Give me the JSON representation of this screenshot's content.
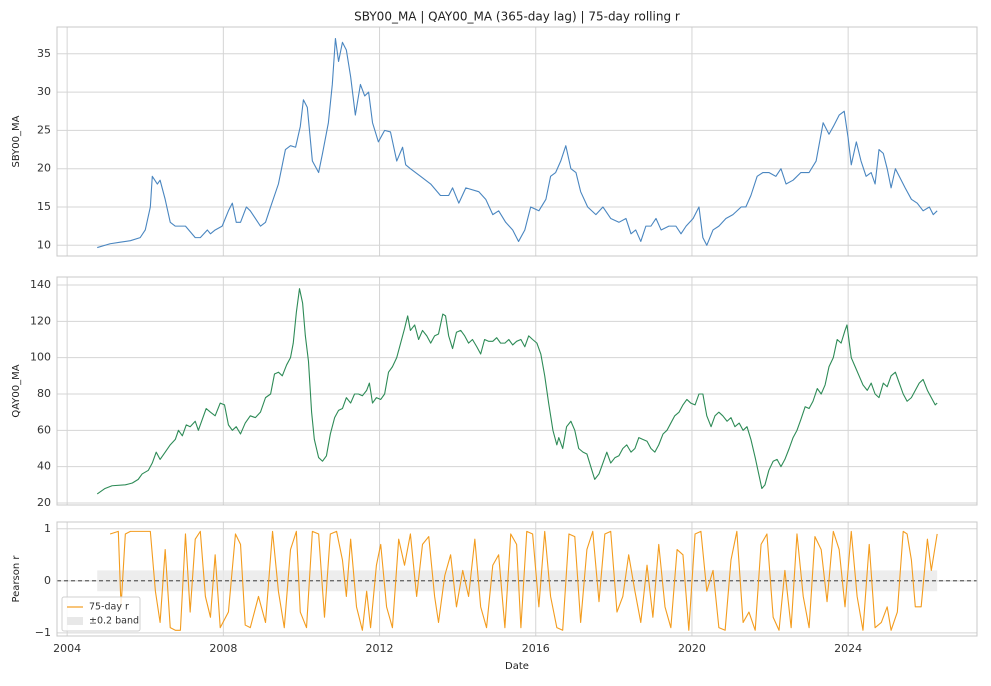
{
  "chart_data": [
    {
      "type": "line",
      "title": "SBY00_MA  |  QAY00_MA (365-day lag)  |  75-day rolling r",
      "ylabel": "SBY00_MA",
      "x": [
        2004.77,
        2005.1,
        2005.36,
        2005.62,
        2005.87,
        2006.0,
        2006.13,
        2006.18,
        2006.31,
        2006.38,
        2006.51,
        2006.64,
        2006.77,
        2007.03,
        2007.28,
        2007.41,
        2007.59,
        2007.67,
        2007.79,
        2007.97,
        2008.13,
        2008.23,
        2008.33,
        2008.44,
        2008.59,
        2008.69,
        2008.82,
        2008.95,
        2009.08,
        2009.21,
        2009.41,
        2009.59,
        2009.72,
        2009.85,
        2009.97,
        2010.05,
        2010.15,
        2010.28,
        2010.44,
        2010.54,
        2010.69,
        2010.79,
        2010.87,
        2010.95,
        2011.05,
        2011.15,
        2011.26,
        2011.38,
        2011.51,
        2011.62,
        2011.72,
        2011.82,
        2011.97,
        2012.13,
        2012.28,
        2012.44,
        2012.59,
        2012.67,
        2012.79,
        2013.05,
        2013.31,
        2013.56,
        2013.77,
        2013.87,
        2014.03,
        2014.21,
        2014.54,
        2014.72,
        2014.9,
        2015.05,
        2015.23,
        2015.41,
        2015.56,
        2015.72,
        2015.87,
        2016.08,
        2016.26,
        2016.38,
        2016.51,
        2016.64,
        2016.77,
        2016.9,
        2017.03,
        2017.15,
        2017.33,
        2017.54,
        2017.72,
        2017.92,
        2018.13,
        2018.31,
        2018.44,
        2018.56,
        2018.69,
        2018.82,
        2018.95,
        2019.08,
        2019.21,
        2019.41,
        2019.59,
        2019.72,
        2019.85,
        2020.03,
        2020.18,
        2020.28,
        2020.38,
        2020.54,
        2020.69,
        2020.87,
        2021.05,
        2021.26,
        2021.38,
        2021.51,
        2021.67,
        2021.82,
        2021.97,
        2022.15,
        2022.28,
        2022.41,
        2022.59,
        2022.79,
        2023.0,
        2023.18,
        2023.36,
        2023.51,
        2023.62,
        2023.77,
        2023.9,
        2024.0,
        2024.08,
        2024.21,
        2024.33,
        2024.46,
        2024.59,
        2024.69,
        2024.79,
        2024.9,
        2025.0,
        2025.1,
        2025.21,
        2025.31,
        2025.46,
        2025.62,
        2025.77,
        2025.92,
        2026.08,
        2026.18,
        2026.28
      ],
      "series": [
        {
          "color": "#4a86c0",
          "values": [
            9.7,
            10.2,
            10.4,
            10.6,
            11,
            12,
            15,
            19,
            18,
            18.5,
            16,
            13,
            12.5,
            12.5,
            11,
            11,
            12,
            11.5,
            12,
            12.5,
            14.5,
            15.5,
            13,
            13,
            15,
            14.5,
            13.5,
            12.5,
            13,
            15,
            18,
            22.5,
            23,
            22.8,
            25.5,
            29,
            28,
            21,
            19.5,
            22,
            26,
            31,
            37,
            34,
            36.5,
            35.5,
            32,
            27,
            31,
            29.5,
            30,
            26,
            23.5,
            25,
            24.8,
            21,
            22.8,
            20.5,
            20,
            19,
            18,
            16.5,
            16.5,
            17.5,
            15.5,
            17.5,
            17,
            16,
            14,
            14.5,
            13,
            12,
            10.5,
            12,
            15,
            14.5,
            16,
            19,
            19.5,
            21,
            23,
            20,
            19.5,
            17,
            15,
            14,
            15,
            13.5,
            13,
            13.5,
            11.5,
            12,
            10.5,
            12.5,
            12.5,
            13.5,
            12,
            12.5,
            12.5,
            11.5,
            12.5,
            13.5,
            15,
            11,
            10,
            12,
            12.5,
            13.5,
            14,
            15,
            15,
            16.5,
            19,
            19.5,
            19.5,
            19,
            20,
            18,
            18.5,
            19.5,
            19.5,
            21,
            26,
            24.5,
            25.5,
            27,
            27.5,
            24,
            20.5,
            23.5,
            21,
            19,
            19.5,
            18,
            22.5,
            22,
            20,
            17.5,
            20,
            19,
            17.5,
            16,
            15.5,
            14.5,
            15,
            14,
            14.5
          ]
        }
      ],
      "xlim": [
        2003.74,
        2027.3
      ],
      "ylim": [
        8.6,
        38.5
      ],
      "yticks": [
        10,
        15,
        20,
        25,
        30,
        35
      ],
      "grid": true
    },
    {
      "type": "line",
      "ylabel": "QAY00_MA",
      "x": [
        2004.77,
        2004.97,
        2005.15,
        2005.49,
        2005.67,
        2005.82,
        2005.92,
        2006.08,
        2006.18,
        2006.28,
        2006.38,
        2006.51,
        2006.64,
        2006.77,
        2006.85,
        2006.95,
        2007.05,
        2007.15,
        2007.28,
        2007.36,
        2007.46,
        2007.56,
        2007.67,
        2007.79,
        2007.92,
        2008.03,
        2008.13,
        2008.23,
        2008.33,
        2008.44,
        2008.56,
        2008.69,
        2008.82,
        2008.95,
        2009.08,
        2009.21,
        2009.31,
        2009.41,
        2009.51,
        2009.62,
        2009.72,
        2009.79,
        2009.87,
        2009.95,
        2010.03,
        2010.1,
        2010.18,
        2010.26,
        2010.33,
        2010.44,
        2010.54,
        2010.64,
        2010.74,
        2010.85,
        2010.95,
        2011.05,
        2011.15,
        2011.26,
        2011.36,
        2011.46,
        2011.56,
        2011.67,
        2011.74,
        2011.82,
        2011.92,
        2012.03,
        2012.13,
        2012.23,
        2012.33,
        2012.44,
        2012.54,
        2012.64,
        2012.72,
        2012.79,
        2012.9,
        2013.0,
        2013.1,
        2013.21,
        2013.31,
        2013.41,
        2013.51,
        2013.62,
        2013.69,
        2013.77,
        2013.87,
        2013.97,
        2014.08,
        2014.18,
        2014.28,
        2014.38,
        2014.49,
        2014.59,
        2014.69,
        2014.79,
        2014.9,
        2015.0,
        2015.1,
        2015.21,
        2015.31,
        2015.41,
        2015.51,
        2015.62,
        2015.72,
        2015.82,
        2015.92,
        2016.03,
        2016.13,
        2016.23,
        2016.33,
        2016.44,
        2016.54,
        2016.59,
        2016.69,
        2016.79,
        2016.9,
        2017.0,
        2017.1,
        2017.21,
        2017.31,
        2017.41,
        2017.51,
        2017.62,
        2017.72,
        2017.82,
        2017.92,
        2018.03,
        2018.13,
        2018.23,
        2018.33,
        2018.44,
        2018.54,
        2018.64,
        2018.74,
        2018.85,
        2018.95,
        2019.05,
        2019.15,
        2019.26,
        2019.36,
        2019.46,
        2019.56,
        2019.67,
        2019.77,
        2019.87,
        2019.97,
        2020.08,
        2020.18,
        2020.28,
        2020.38,
        2020.49,
        2020.59,
        2020.69,
        2020.79,
        2020.9,
        2021.0,
        2021.1,
        2021.21,
        2021.31,
        2021.41,
        2021.51,
        2021.62,
        2021.72,
        2021.79,
        2021.87,
        2021.97,
        2022.08,
        2022.18,
        2022.28,
        2022.38,
        2022.49,
        2022.59,
        2022.69,
        2022.79,
        2022.9,
        2023.0,
        2023.1,
        2023.21,
        2023.31,
        2023.41,
        2023.51,
        2023.62,
        2023.72,
        2023.82,
        2023.92,
        2023.97,
        2024.08,
        2024.18,
        2024.28,
        2024.38,
        2024.49,
        2024.59,
        2024.69,
        2024.79,
        2024.9,
        2025.0,
        2025.1,
        2025.21,
        2025.31,
        2025.41,
        2025.51,
        2025.62,
        2025.72,
        2025.82,
        2025.92,
        2026.03,
        2026.13,
        2026.23,
        2026.28
      ],
      "series": [
        {
          "color": "#2e8b57",
          "values": [
            25,
            28,
            29.5,
            30,
            31,
            33,
            36,
            38,
            42,
            48,
            44,
            48,
            52,
            55,
            60,
            57,
            63,
            62,
            65,
            60,
            66,
            72,
            70,
            68,
            75,
            74,
            63,
            60,
            62,
            58,
            64,
            68,
            67,
            70,
            78,
            80,
            91,
            92,
            90,
            96,
            100,
            108,
            125,
            138,
            130,
            112,
            98,
            70,
            55,
            45,
            43,
            46,
            58,
            67,
            71,
            72,
            78,
            75,
            80,
            80,
            79,
            82,
            86,
            75,
            78,
            77,
            80,
            92,
            95,
            100,
            108,
            116,
            123,
            115,
            118,
            110,
            115,
            112,
            108,
            112,
            113,
            124,
            123,
            112,
            105,
            114,
            115,
            112,
            108,
            110,
            106,
            102,
            110,
            109,
            109,
            111,
            108,
            108,
            110,
            107,
            109,
            110,
            106,
            112,
            110,
            108,
            102,
            90,
            75,
            60,
            52,
            56,
            50,
            62,
            65,
            60,
            50,
            48,
            47,
            40,
            33,
            36,
            42,
            48,
            42,
            45,
            46,
            50,
            52,
            48,
            50,
            56,
            55,
            54,
            50,
            48,
            52,
            58,
            60,
            64,
            68,
            70,
            74,
            77,
            75,
            74,
            80,
            80,
            68,
            62,
            68,
            70,
            68,
            65,
            67,
            62,
            64,
            60,
            62,
            55,
            45,
            35,
            28,
            30,
            38,
            43,
            44,
            40,
            44,
            50,
            56,
            60,
            66,
            73,
            72,
            76,
            83,
            80,
            85,
            95,
            100,
            110,
            108,
            115,
            118,
            100,
            95,
            90,
            85,
            82,
            86,
            80,
            78,
            86,
            84,
            90,
            92,
            86,
            80,
            76,
            78,
            82,
            86,
            88,
            82,
            78,
            74,
            75
          ]
        }
      ],
      "xlim": [
        2003.74,
        2027.3
      ],
      "ylim": [
        18.9,
        144.4
      ],
      "yticks": [
        20,
        40,
        60,
        80,
        100,
        120,
        140
      ],
      "grid": true
    },
    {
      "type": "line",
      "ylabel": "Pearson r",
      "xlabel": "Date",
      "x": [
        2005.1,
        2005.31,
        2005.38,
        2005.49,
        2005.62,
        2006.13,
        2006.26,
        2006.38,
        2006.51,
        2006.64,
        2006.77,
        2006.9,
        2007.03,
        2007.15,
        2007.28,
        2007.41,
        2007.54,
        2007.67,
        2007.79,
        2007.92,
        2008.13,
        2008.31,
        2008.44,
        2008.56,
        2008.69,
        2008.9,
        2009.08,
        2009.26,
        2009.41,
        2009.56,
        2009.72,
        2009.87,
        2009.97,
        2010.13,
        2010.28,
        2010.44,
        2010.59,
        2010.74,
        2010.9,
        2011.05,
        2011.15,
        2011.26,
        2011.41,
        2011.56,
        2011.67,
        2011.77,
        2011.92,
        2012.03,
        2012.18,
        2012.33,
        2012.49,
        2012.64,
        2012.79,
        2012.95,
        2013.1,
        2013.26,
        2013.41,
        2013.51,
        2013.67,
        2013.82,
        2013.97,
        2014.13,
        2014.28,
        2014.44,
        2014.59,
        2014.74,
        2014.9,
        2015.05,
        2015.21,
        2015.36,
        2015.51,
        2015.62,
        2015.77,
        2015.92,
        2016.08,
        2016.23,
        2016.38,
        2016.54,
        2016.69,
        2016.85,
        2017.0,
        2017.15,
        2017.31,
        2017.46,
        2017.62,
        2017.77,
        2017.92,
        2018.08,
        2018.23,
        2018.38,
        2018.54,
        2018.69,
        2018.85,
        2019.0,
        2019.15,
        2019.31,
        2019.46,
        2019.62,
        2019.77,
        2019.92,
        2020.08,
        2020.23,
        2020.38,
        2020.54,
        2020.69,
        2020.85,
        2021.0,
        2021.15,
        2021.31,
        2021.46,
        2021.62,
        2021.77,
        2021.92,
        2022.08,
        2022.23,
        2022.38,
        2022.54,
        2022.69,
        2022.85,
        2023.0,
        2023.15,
        2023.31,
        2023.46,
        2023.62,
        2023.77,
        2023.92,
        2024.08,
        2024.23,
        2024.38,
        2024.54,
        2024.69,
        2024.85,
        2025.0,
        2025.1,
        2025.26,
        2025.41,
        2025.51,
        2025.62,
        2025.72,
        2025.87,
        2026.03,
        2026.13,
        2026.28
      ],
      "series": [
        {
          "name": "75-day r",
          "color": "#f39c1e",
          "values": [
            0.9,
            0.95,
            -0.5,
            0.9,
            0.95,
            0.95,
            -0.2,
            -0.8,
            0.6,
            -0.9,
            -0.95,
            -0.95,
            0.9,
            -0.6,
            0.8,
            0.95,
            -0.3,
            -0.7,
            0.5,
            -0.9,
            -0.6,
            0.9,
            0.7,
            -0.85,
            -0.9,
            -0.3,
            -0.8,
            0.95,
            -0.2,
            -0.9,
            0.6,
            0.95,
            -0.6,
            -0.9,
            0.95,
            0.9,
            -0.7,
            0.9,
            0.95,
            0.4,
            -0.3,
            0.8,
            -0.5,
            -0.95,
            -0.2,
            -0.9,
            0.3,
            0.7,
            -0.5,
            -0.9,
            0.8,
            0.3,
            0.9,
            -0.3,
            0.7,
            0.85,
            -0.3,
            -0.8,
            0.1,
            0.5,
            -0.5,
            0.2,
            -0.3,
            0.8,
            -0.5,
            -0.9,
            0.3,
            0.5,
            -0.9,
            0.9,
            0.7,
            -0.9,
            0.95,
            0.9,
            -0.5,
            0.95,
            -0.3,
            -0.9,
            -0.95,
            0.9,
            0.85,
            -0.8,
            0.6,
            0.95,
            -0.4,
            0.9,
            0.95,
            -0.6,
            -0.3,
            0.5,
            -0.2,
            -0.8,
            0.3,
            -0.7,
            0.7,
            -0.5,
            -0.9,
            0.6,
            0.5,
            -0.95,
            0.9,
            0.95,
            -0.2,
            0.2,
            -0.9,
            -0.95,
            0.4,
            0.95,
            -0.8,
            -0.6,
            -0.95,
            0.7,
            0.9,
            -0.7,
            -0.95,
            0.2,
            -0.9,
            0.9,
            -0.3,
            -0.9,
            0.85,
            0.6,
            -0.4,
            0.95,
            0.6,
            -0.5,
            0.95,
            -0.3,
            -0.95,
            0.7,
            -0.9,
            -0.8,
            -0.5,
            -0.95,
            -0.6,
            0.95,
            0.9,
            0.4,
            -0.5,
            -0.5,
            0.8,
            0.2,
            0.9
          ]
        }
      ],
      "band": {
        "name": "±0.2 band",
        "value": 0.2,
        "color": "#e8e8e8"
      },
      "hline": 0,
      "legend": "lower left",
      "xlim": [
        2003.74,
        2027.3
      ],
      "xticks": [
        2004,
        2008,
        2012,
        2016,
        2020,
        2024
      ],
      "ylim": [
        -1.06,
        1.13
      ],
      "yticks": [
        {
          "value": 1,
          "label": "1"
        },
        0,
        {
          "value": -1,
          "label": "−1"
        }
      ],
      "grid": true
    }
  ]
}
